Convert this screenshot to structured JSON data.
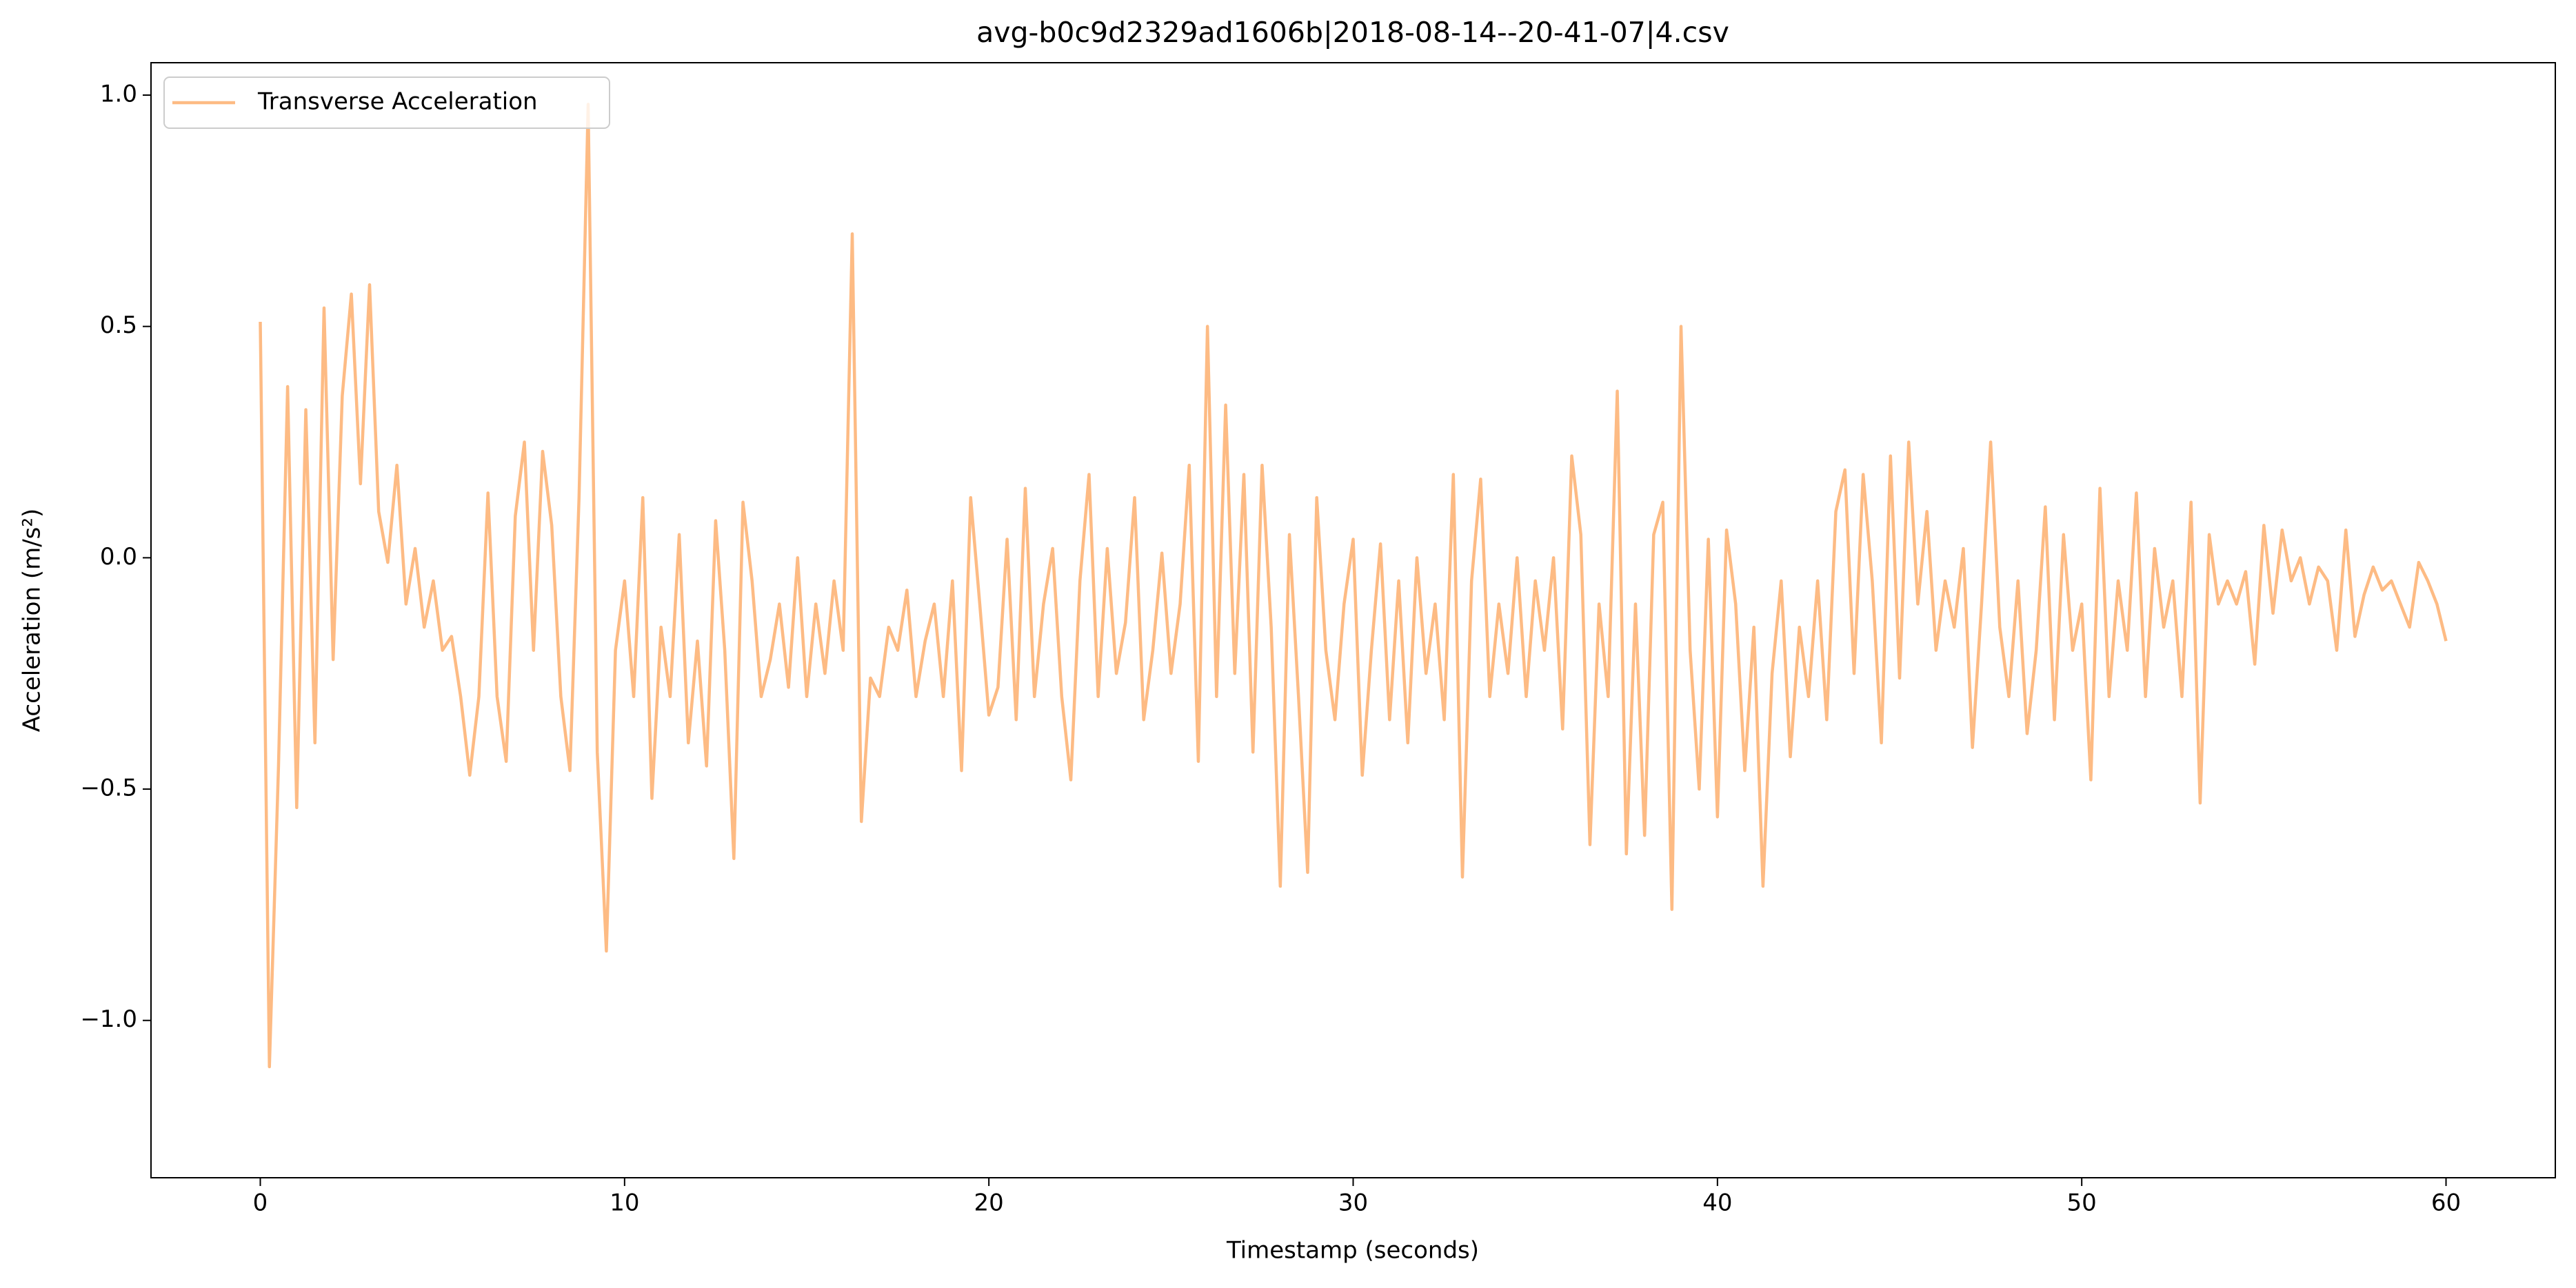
{
  "chart_data": {
    "type": "line",
    "title": "avg-b0c9d2329ad1606b|2018-08-14--20-41-07|4.csv",
    "x_label": "Timestamp (seconds)",
    "y_label": "Acceleration (m/s²)",
    "legend": "upper left",
    "grid": false,
    "xlim": [
      -3,
      63
    ],
    "ylim": [
      -1.34,
      1.07
    ],
    "xticks": [
      0,
      10,
      20,
      30,
      40,
      50,
      60
    ],
    "yticks": [
      {
        "value": -1.0,
        "label": "−1.0"
      },
      {
        "value": -0.5,
        "label": "−0.5"
      },
      {
        "value": 0.0,
        "label": "0.0"
      },
      0.5,
      {
        "value": 1.0,
        "label": "1.0"
      }
    ],
    "x": [
      0,
      0.25,
      0.5,
      0.75,
      1,
      1.25,
      1.5,
      1.75,
      2,
      2.25,
      2.5,
      2.75,
      3,
      3.25,
      3.5,
      3.75,
      4,
      4.25,
      4.5,
      4.75,
      5,
      5.25,
      5.5,
      5.75,
      6,
      6.25,
      6.5,
      6.75,
      7,
      7.25,
      7.5,
      7.75,
      8,
      8.25,
      8.5,
      8.75,
      9,
      9.25,
      9.5,
      9.75,
      10,
      10.25,
      10.5,
      10.75,
      11,
      11.25,
      11.5,
      11.75,
      12,
      12.25,
      12.5,
      12.75,
      13,
      13.25,
      13.5,
      13.75,
      14,
      14.25,
      14.5,
      14.75,
      15,
      15.25,
      15.5,
      15.75,
      16,
      16.25,
      16.5,
      16.75,
      17,
      17.25,
      17.5,
      17.75,
      18,
      18.25,
      18.5,
      18.75,
      19,
      19.25,
      19.5,
      19.75,
      20,
      20.25,
      20.5,
      20.75,
      21,
      21.25,
      21.5,
      21.75,
      22,
      22.25,
      22.5,
      22.75,
      23,
      23.25,
      23.5,
      23.75,
      24,
      24.25,
      24.5,
      24.75,
      25,
      25.25,
      25.5,
      25.75,
      26,
      26.25,
      26.5,
      26.75,
      27,
      27.25,
      27.5,
      27.75,
      28,
      28.25,
      28.5,
      28.75,
      29,
      29.25,
      29.5,
      29.75,
      30,
      30.25,
      30.5,
      30.75,
      31,
      31.25,
      31.5,
      31.75,
      32,
      32.25,
      32.5,
      32.75,
      33,
      33.25,
      33.5,
      33.75,
      34,
      34.25,
      34.5,
      34.75,
      35,
      35.25,
      35.5,
      35.75,
      36,
      36.25,
      36.5,
      36.75,
      37,
      37.25,
      37.5,
      37.75,
      38,
      38.25,
      38.5,
      38.75,
      39,
      39.25,
      39.5,
      39.75,
      40,
      40.25,
      40.5,
      40.75,
      41,
      41.25,
      41.5,
      41.75,
      42,
      42.25,
      42.5,
      42.75,
      43,
      43.25,
      43.5,
      43.75,
      44,
      44.25,
      44.5,
      44.75,
      45,
      45.25,
      45.5,
      45.75,
      46,
      46.25,
      46.5,
      46.75,
      47,
      47.25,
      47.5,
      47.75,
      48,
      48.25,
      48.5,
      48.75,
      49,
      49.25,
      49.5,
      49.75,
      50,
      50.25,
      50.5,
      50.75,
      51,
      51.25,
      51.5,
      51.75,
      52,
      52.25,
      52.5,
      52.75,
      53,
      53.25,
      53.5,
      53.75,
      54,
      54.25,
      54.5,
      54.75,
      55,
      55.25,
      55.5,
      55.75,
      56,
      56.25,
      56.5,
      56.75,
      57,
      57.25,
      57.5,
      57.75,
      58,
      58.25,
      58.5,
      58.75,
      59,
      59.25,
      59.5,
      59.75,
      60
    ],
    "series": [
      {
        "name": "Transverse Acceleration",
        "color": "#fdbb84",
        "values": [
          0.51,
          -1.1,
          -0.45,
          0.37,
          -0.54,
          0.32,
          -0.4,
          0.54,
          -0.22,
          0.35,
          0.57,
          0.16,
          0.59,
          0.1,
          -0.01,
          0.2,
          -0.1,
          0.02,
          -0.15,
          -0.05,
          -0.2,
          -0.17,
          -0.3,
          -0.47,
          -0.3,
          0.14,
          -0.3,
          -0.44,
          0.09,
          0.25,
          -0.2,
          0.23,
          0.07,
          -0.3,
          -0.46,
          0.13,
          0.98,
          -0.42,
          -0.85,
          -0.2,
          -0.05,
          -0.3,
          0.13,
          -0.52,
          -0.15,
          -0.3,
          0.05,
          -0.4,
          -0.18,
          -0.45,
          0.08,
          -0.2,
          -0.65,
          0.12,
          -0.05,
          -0.3,
          -0.22,
          -0.1,
          -0.28,
          0.0,
          -0.3,
          -0.1,
          -0.25,
          -0.05,
          -0.2,
          0.7,
          -0.57,
          -0.26,
          -0.3,
          -0.15,
          -0.2,
          -0.07,
          -0.3,
          -0.18,
          -0.1,
          -0.3,
          -0.05,
          -0.46,
          0.13,
          -0.1,
          -0.34,
          -0.28,
          0.04,
          -0.35,
          0.15,
          -0.3,
          -0.1,
          0.02,
          -0.3,
          -0.48,
          -0.05,
          0.18,
          -0.3,
          0.02,
          -0.25,
          -0.14,
          0.13,
          -0.35,
          -0.2,
          0.01,
          -0.25,
          -0.1,
          0.2,
          -0.44,
          0.5,
          -0.3,
          0.33,
          -0.25,
          0.18,
          -0.42,
          0.2,
          -0.15,
          -0.71,
          0.05,
          -0.3,
          -0.68,
          0.13,
          -0.2,
          -0.35,
          -0.1,
          0.04,
          -0.47,
          -0.2,
          0.03,
          -0.35,
          -0.05,
          -0.4,
          0.0,
          -0.25,
          -0.1,
          -0.35,
          0.18,
          -0.69,
          -0.05,
          0.17,
          -0.3,
          -0.1,
          -0.25,
          0.0,
          -0.3,
          -0.05,
          -0.2,
          0.0,
          -0.37,
          0.22,
          0.05,
          -0.62,
          -0.1,
          -0.3,
          0.36,
          -0.64,
          -0.1,
          -0.6,
          0.05,
          0.12,
          -0.76,
          0.5,
          -0.2,
          -0.5,
          0.04,
          -0.56,
          0.06,
          -0.1,
          -0.46,
          -0.15,
          -0.71,
          -0.25,
          -0.05,
          -0.43,
          -0.15,
          -0.3,
          -0.05,
          -0.35,
          0.1,
          0.19,
          -0.25,
          0.18,
          -0.05,
          -0.4,
          0.22,
          -0.26,
          0.25,
          -0.1,
          0.1,
          -0.2,
          -0.05,
          -0.15,
          0.02,
          -0.41,
          -0.1,
          0.25,
          -0.15,
          -0.3,
          -0.05,
          -0.38,
          -0.2,
          0.11,
          -0.35,
          0.05,
          -0.2,
          -0.1,
          -0.48,
          0.15,
          -0.3,
          -0.05,
          -0.2,
          0.14,
          -0.3,
          0.02,
          -0.15,
          -0.05,
          -0.3,
          0.12,
          -0.53,
          0.05,
          -0.1,
          -0.05,
          -0.1,
          -0.03,
          -0.23,
          0.07,
          -0.12,
          0.06,
          -0.05,
          0.0,
          -0.1,
          -0.02,
          -0.05,
          -0.2,
          0.06,
          -0.17,
          -0.08,
          -0.02,
          -0.07,
          -0.05,
          -0.1,
          -0.15,
          -0.01,
          -0.05,
          -0.1,
          -0.18
        ]
      }
    ]
  }
}
